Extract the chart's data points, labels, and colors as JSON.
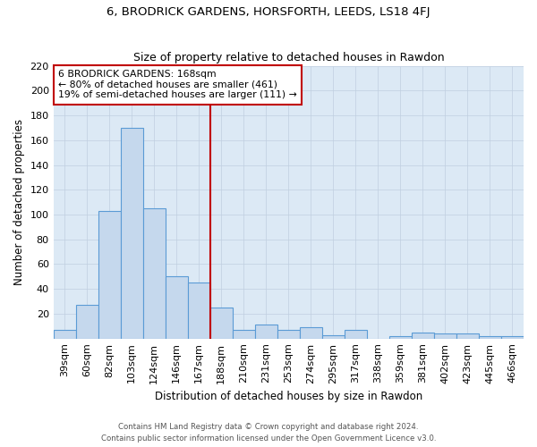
{
  "title": "6, BRODRICK GARDENS, HORSFORTH, LEEDS, LS18 4FJ",
  "subtitle": "Size of property relative to detached houses in Rawdon",
  "xlabel": "Distribution of detached houses by size in Rawdon",
  "ylabel": "Number of detached properties",
  "footnote1": "Contains HM Land Registry data © Crown copyright and database right 2024.",
  "footnote2": "Contains public sector information licensed under the Open Government Licence v3.0.",
  "bar_labels": [
    "39sqm",
    "60sqm",
    "82sqm",
    "103sqm",
    "124sqm",
    "146sqm",
    "167sqm",
    "188sqm",
    "210sqm",
    "231sqm",
    "253sqm",
    "274sqm",
    "295sqm",
    "317sqm",
    "338sqm",
    "359sqm",
    "381sqm",
    "402sqm",
    "423sqm",
    "445sqm",
    "466sqm"
  ],
  "bar_values": [
    7,
    27,
    103,
    170,
    105,
    50,
    45,
    25,
    7,
    11,
    7,
    9,
    3,
    7,
    0,
    2,
    5,
    4,
    4,
    2,
    2
  ],
  "bar_color": "#c5d8ed",
  "bar_edge_color": "#5b9bd5",
  "annotation_line1": "6 BRODRICK GARDENS: 168sqm",
  "annotation_line2": "← 80% of detached houses are smaller (461)",
  "annotation_line3": "19% of semi-detached houses are larger (111) →",
  "vline_x": 6.5,
  "vline_color": "#c00000",
  "ylim": [
    0,
    220
  ],
  "yticks": [
    0,
    20,
    40,
    60,
    80,
    100,
    120,
    140,
    160,
    180,
    200,
    220
  ],
  "background_color": "#ffffff",
  "plot_bg_color": "#dce9f5",
  "grid_color": "#c0cfe0",
  "annotation_box_color": "#ffffff",
  "annotation_box_edge_color": "#c00000",
  "title_fontsize": 9.5,
  "subtitle_fontsize": 9.0,
  "ylabel_fontsize": 8.5,
  "xlabel_fontsize": 8.5,
  "tick_fontsize": 8.0,
  "annot_fontsize": 7.8
}
